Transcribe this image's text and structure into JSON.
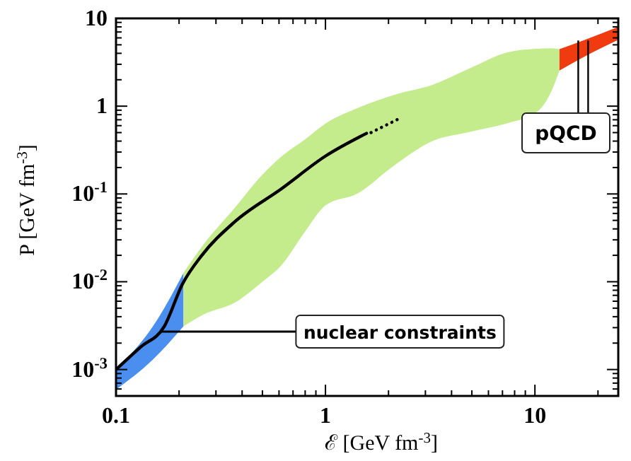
{
  "chart_data": {
    "type": "line",
    "xlabel": "ℰ  [GeV fm$^{-3}$]",
    "ylabel": "P  [GeV fm$^{-3}$]",
    "log": "xy",
    "grid": false,
    "xlim": [
      0.1,
      25
    ],
    "ylim": [
      0.0005,
      10
    ],
    "xticks": [
      0.1,
      {
        "value": 0.2,
        "label": null
      },
      {
        "value": 0.3,
        "label": null
      },
      {
        "value": 0.4,
        "label": null
      },
      {
        "value": 0.5,
        "label": null
      },
      {
        "value": 0.6,
        "label": null
      },
      {
        "value": 0.7,
        "label": null
      },
      {
        "value": 0.8,
        "label": null
      },
      {
        "value": 0.9,
        "label": null
      },
      1,
      {
        "value": 2,
        "label": null
      },
      {
        "value": 3,
        "label": null
      },
      {
        "value": 4,
        "label": null
      },
      {
        "value": 5,
        "label": null
      },
      {
        "value": 6,
        "label": null
      },
      {
        "value": 7,
        "label": null
      },
      {
        "value": 8,
        "label": null
      },
      {
        "value": 9,
        "label": null
      },
      10,
      {
        "value": 20,
        "label": null
      }
    ],
    "yticks": [
      {
        "value": 0.0006,
        "label": null
      },
      {
        "value": 0.0007,
        "label": null
      },
      {
        "value": 0.0008,
        "label": null
      },
      {
        "value": 0.0009,
        "label": null
      },
      {
        "value": 0.001,
        "label": "10$^{-3}$"
      },
      {
        "value": 0.002,
        "label": null
      },
      {
        "value": 0.003,
        "label": null
      },
      {
        "value": 0.004,
        "label": null
      },
      {
        "value": 0.005,
        "label": null
      },
      {
        "value": 0.006,
        "label": null
      },
      {
        "value": 0.007,
        "label": null
      },
      {
        "value": 0.008,
        "label": null
      },
      {
        "value": 0.009,
        "label": null
      },
      {
        "value": 0.01,
        "label": "10$^{-2}$"
      },
      {
        "value": 0.02,
        "label": null
      },
      {
        "value": 0.03,
        "label": null
      },
      {
        "value": 0.04,
        "label": null
      },
      {
        "value": 0.05,
        "label": null
      },
      {
        "value": 0.06,
        "label": null
      },
      {
        "value": 0.07,
        "label": null
      },
      {
        "value": 0.08,
        "label": null
      },
      {
        "value": 0.09,
        "label": null
      },
      {
        "value": 0.1,
        "label": "10$^{-1}$"
      },
      {
        "value": 0.2,
        "label": null
      },
      {
        "value": 0.3,
        "label": null
      },
      {
        "value": 0.4,
        "label": null
      },
      {
        "value": 0.5,
        "label": null
      },
      {
        "value": 0.6,
        "label": null
      },
      {
        "value": 0.7,
        "label": null
      },
      {
        "value": 0.8,
        "label": null
      },
      {
        "value": 0.9,
        "label": null
      },
      1,
      {
        "value": 2,
        "label": null
      },
      {
        "value": 3,
        "label": null
      },
      {
        "value": 4,
        "label": null
      },
      {
        "value": 5,
        "label": null
      },
      {
        "value": 6,
        "label": null
      },
      {
        "value": 7,
        "label": null
      },
      {
        "value": 8,
        "label": null
      },
      {
        "value": 9,
        "label": null
      },
      10
    ],
    "series": [
      {
        "type": "area",
        "color": "#4a8ff0",
        "x": [
          0.1,
          0.15,
          0.21
        ],
        "values": [
          null,
          null,
          null
        ],
        "lower": [
          0.00059,
          0.0013,
          0.0031
        ],
        "upper": [
          0.001,
          0.0031,
          0.0126
        ]
      },
      {
        "type": "area",
        "color": "#c4ec8c",
        "x": [
          0.21,
          0.26,
          0.37,
          0.5,
          0.62,
          0.8,
          1.0,
          1.42,
          2.14,
          3.24,
          4.9,
          7.4,
          10.1,
          11.8,
          13.1
        ],
        "values": [
          null,
          null,
          null,
          null,
          null,
          null,
          null,
          null,
          null,
          null,
          null,
          null,
          null,
          null,
          null
        ],
        "lower": [
          0.0031,
          0.0042,
          0.0058,
          0.01,
          0.0157,
          0.0375,
          0.074,
          0.101,
          0.213,
          0.4,
          0.51,
          0.64,
          0.84,
          1.37,
          2.55
        ],
        "upper": [
          0.0126,
          0.026,
          0.07,
          0.166,
          0.27,
          0.42,
          0.635,
          0.95,
          1.35,
          1.75,
          2.7,
          4.1,
          4.5,
          4.57,
          4.47
        ]
      },
      {
        "type": "area",
        "color": "#f03a10",
        "x": [
          13.1,
          17,
          25
        ],
        "values": [
          null,
          null,
          null
        ],
        "lower": [
          2.55,
          3.6,
          5.7
        ],
        "upper": [
          4.47,
          5.6,
          8
        ]
      },
      {
        "color": "#000000",
        "line_style": "solid",
        "x": [
          0.1,
          0.131,
          0.17,
          0.208,
          0.257,
          0.368,
          0.618,
          1.0,
          1.57
        ],
        "values": [
          0.001,
          0.0018,
          0.0031,
          0.0095,
          0.02,
          0.048,
          0.115,
          0.27,
          0.49
        ]
      },
      {
        "color": "#000000",
        "line_style": "dotted",
        "x": [
          1.65,
          2.3
        ],
        "values": [
          0.5,
          0.74
        ]
      }
    ],
    "annotations": [
      {
        "text": "nuclear constraints",
        "x": 0.165,
        "y": 0.0027
      },
      {
        "text": "pQCD",
        "x": 17,
        "y": 5.6
      }
    ]
  }
}
